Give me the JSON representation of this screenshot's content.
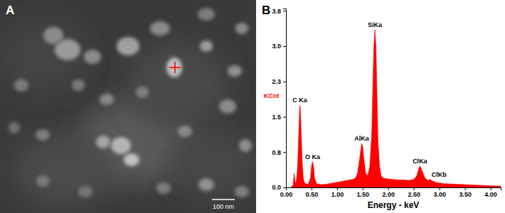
{
  "image_panel": {
    "label": "A",
    "scale_bar": "100 nm"
  },
  "chart_data": {
    "type": "area",
    "panel_label": "B",
    "x_label": "Energy - keV",
    "y_label": "KCnt",
    "color": "#ff0000",
    "grid": false,
    "x": [
      0.1,
      0.14,
      0.16,
      0.18,
      0.2,
      0.22,
      0.24,
      0.26,
      0.27,
      0.28,
      0.3,
      0.32,
      0.34,
      0.36,
      0.4,
      0.44,
      0.48,
      0.5,
      0.52,
      0.54,
      0.56,
      0.6,
      0.7,
      0.8,
      0.9,
      1.0,
      1.1,
      1.2,
      1.3,
      1.36,
      1.4,
      1.44,
      1.48,
      1.5,
      1.53,
      1.56,
      1.6,
      1.64,
      1.68,
      1.7,
      1.72,
      1.74,
      1.76,
      1.78,
      1.8,
      1.83,
      1.86,
      1.9,
      2.0,
      2.1,
      2.2,
      2.3,
      2.4,
      2.5,
      2.56,
      2.6,
      2.62,
      2.64,
      2.68,
      2.72,
      2.78,
      2.82,
      2.86,
      2.95,
      3.1,
      3.3,
      3.5,
      3.7,
      3.9,
      4.1,
      4.2
    ],
    "values": [
      0.0,
      0.05,
      0.3,
      0.1,
      0.12,
      0.3,
      0.8,
      1.45,
      1.75,
      1.7,
      1.1,
      0.5,
      0.2,
      0.1,
      0.07,
      0.08,
      0.2,
      0.45,
      0.55,
      0.45,
      0.2,
      0.08,
      0.06,
      0.07,
      0.09,
      0.11,
      0.13,
      0.15,
      0.17,
      0.2,
      0.3,
      0.6,
      0.93,
      0.88,
      0.55,
      0.3,
      0.25,
      0.45,
      1.2,
      2.2,
      3.0,
      3.35,
      3.0,
      2.0,
      1.0,
      0.45,
      0.25,
      0.2,
      0.18,
      0.17,
      0.16,
      0.16,
      0.15,
      0.17,
      0.25,
      0.42,
      0.45,
      0.42,
      0.3,
      0.2,
      0.15,
      0.17,
      0.14,
      0.1,
      0.08,
      0.07,
      0.06,
      0.05,
      0.04,
      0.03,
      0.03
    ],
    "xlim": [
      0,
      4.2
    ],
    "ylim": [
      0,
      3.8
    ],
    "xticks": [
      {
        "value": 0,
        "label": "0.00"
      },
      {
        "value": 0.5,
        "label": "0.50"
      },
      {
        "value": 1,
        "label": "1.00"
      },
      {
        "value": 1.5,
        "label": "1.50"
      },
      {
        "value": 2,
        "label": "2.00"
      },
      {
        "value": 2.5,
        "label": "2.50"
      },
      {
        "value": 3,
        "label": "3.00"
      },
      {
        "value": 3.5,
        "label": "3.50"
      },
      {
        "value": 4,
        "label": "4.00"
      }
    ],
    "yticks": [
      {
        "value": 0,
        "label": "0.0"
      },
      {
        "value": 0.75,
        "label": "0.8"
      },
      {
        "value": 1.5,
        "label": "1.5"
      },
      {
        "value": 2.25,
        "label": "2.3"
      },
      {
        "value": 3,
        "label": "3.0"
      },
      {
        "value": 3.75,
        "label": "3.8"
      }
    ],
    "annotations": [
      {
        "text": "C Ka",
        "x": 0.27
      },
      {
        "text": "O Ka",
        "x": 0.52
      },
      {
        "text": "AlKa",
        "x": 1.48
      },
      {
        "text": "SiKa",
        "x": 1.74
      },
      {
        "text": "ClKa",
        "x": 2.62
      },
      {
        "text": "ClKb",
        "x": 2.82
      }
    ]
  }
}
